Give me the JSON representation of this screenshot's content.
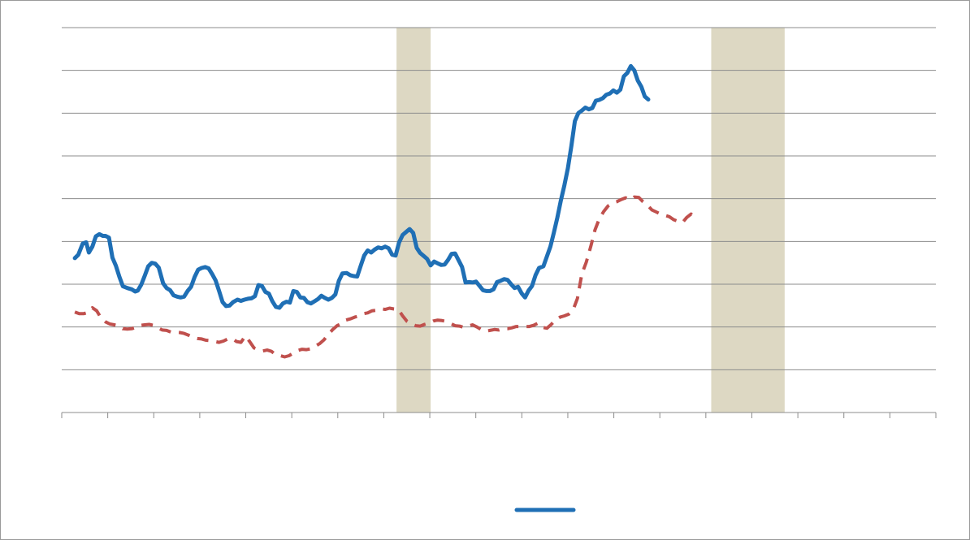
{
  "colors": {
    "primary_line": "#1f6fb5",
    "secondary_line": "#c0504d",
    "recession_band": "#ddd8c3",
    "grid": "#8c8c8c"
  },
  "chart_data": {
    "type": "line",
    "title": "",
    "xlabel": "",
    "ylabel": "",
    "xlim": [
      0,
      1000
    ],
    "ylim": [
      0,
      9
    ],
    "grid": true,
    "x_tick_count": 19,
    "legend_position": "bottom",
    "shaded_bands": [
      [
        383,
        422
      ],
      [
        743,
        827
      ]
    ],
    "series": [
      {
        "style": "solid",
        "points": [
          [
            15,
            3.61
          ],
          [
            19,
            3.69
          ],
          [
            24,
            3.95
          ],
          [
            28,
            3.98
          ],
          [
            31,
            3.74
          ],
          [
            35,
            3.88
          ],
          [
            39,
            4.12
          ],
          [
            43,
            4.17
          ],
          [
            47,
            4.13
          ],
          [
            50,
            4.13
          ],
          [
            54,
            4.09
          ],
          [
            58,
            3.62
          ],
          [
            62,
            3.43
          ],
          [
            66,
            3.17
          ],
          [
            70,
            2.95
          ],
          [
            75,
            2.91
          ],
          [
            80,
            2.88
          ],
          [
            84,
            2.83
          ],
          [
            87,
            2.85
          ],
          [
            91,
            2.99
          ],
          [
            95,
            3.2
          ],
          [
            99,
            3.42
          ],
          [
            103,
            3.5
          ],
          [
            107,
            3.48
          ],
          [
            111,
            3.39
          ],
          [
            116,
            3.02
          ],
          [
            120,
            2.91
          ],
          [
            124,
            2.86
          ],
          [
            128,
            2.74
          ],
          [
            132,
            2.71
          ],
          [
            136,
            2.69
          ],
          [
            140,
            2.71
          ],
          [
            144,
            2.84
          ],
          [
            148,
            2.94
          ],
          [
            152,
            3.17
          ],
          [
            156,
            3.34
          ],
          [
            160,
            3.38
          ],
          [
            164,
            3.4
          ],
          [
            168,
            3.37
          ],
          [
            172,
            3.24
          ],
          [
            176,
            3.09
          ],
          [
            180,
            2.84
          ],
          [
            184,
            2.58
          ],
          [
            188,
            2.49
          ],
          [
            192,
            2.5
          ],
          [
            196,
            2.58
          ],
          [
            201,
            2.64
          ],
          [
            205,
            2.61
          ],
          [
            209,
            2.64
          ],
          [
            213,
            2.66
          ],
          [
            217,
            2.67
          ],
          [
            221,
            2.72
          ],
          [
            225,
            2.98
          ],
          [
            229,
            2.96
          ],
          [
            233,
            2.82
          ],
          [
            237,
            2.78
          ],
          [
            241,
            2.6
          ],
          [
            245,
            2.47
          ],
          [
            249,
            2.45
          ],
          [
            253,
            2.55
          ],
          [
            257,
            2.59
          ],
          [
            261,
            2.57
          ],
          [
            265,
            2.84
          ],
          [
            269,
            2.82
          ],
          [
            273,
            2.69
          ],
          [
            277,
            2.68
          ],
          [
            281,
            2.58
          ],
          [
            285,
            2.55
          ],
          [
            289,
            2.6
          ],
          [
            293,
            2.65
          ],
          [
            297,
            2.73
          ],
          [
            301,
            2.68
          ],
          [
            305,
            2.64
          ],
          [
            309,
            2.68
          ],
          [
            313,
            2.76
          ],
          [
            317,
            3.08
          ],
          [
            321,
            3.25
          ],
          [
            326,
            3.26
          ],
          [
            330,
            3.21
          ],
          [
            334,
            3.19
          ],
          [
            338,
            3.18
          ],
          [
            342,
            3.43
          ],
          [
            346,
            3.67
          ],
          [
            350,
            3.79
          ],
          [
            354,
            3.74
          ],
          [
            358,
            3.81
          ],
          [
            362,
            3.86
          ],
          [
            366,
            3.84
          ],
          [
            370,
            3.88
          ],
          [
            374,
            3.84
          ],
          [
            378,
            3.69
          ],
          [
            382,
            3.67
          ],
          [
            386,
            3.98
          ],
          [
            390,
            4.15
          ],
          [
            394,
            4.22
          ],
          [
            398,
            4.29
          ],
          [
            402,
            4.2
          ],
          [
            406,
            3.85
          ],
          [
            410,
            3.73
          ],
          [
            414,
            3.66
          ],
          [
            418,
            3.59
          ],
          [
            422,
            3.44
          ],
          [
            426,
            3.53
          ],
          [
            430,
            3.49
          ],
          [
            434,
            3.45
          ],
          [
            438,
            3.46
          ],
          [
            442,
            3.57
          ],
          [
            446,
            3.71
          ],
          [
            450,
            3.72
          ],
          [
            454,
            3.56
          ],
          [
            458,
            3.4
          ],
          [
            462,
            3.04
          ],
          [
            466,
            3.05
          ],
          [
            470,
            3.04
          ],
          [
            474,
            3.06
          ],
          [
            478,
            2.96
          ],
          [
            482,
            2.86
          ],
          [
            486,
            2.84
          ],
          [
            490,
            2.84
          ],
          [
            494,
            2.88
          ],
          [
            498,
            3.05
          ],
          [
            502,
            3.08
          ],
          [
            506,
            3.12
          ],
          [
            510,
            3.1
          ],
          [
            514,
            3.0
          ],
          [
            518,
            2.91
          ],
          [
            522,
            2.94
          ],
          [
            526,
            2.79
          ],
          [
            530,
            2.69
          ],
          [
            534,
            2.85
          ],
          [
            538,
            2.96
          ],
          [
            542,
            3.21
          ],
          [
            546,
            3.38
          ],
          [
            551,
            3.42
          ],
          [
            555,
            3.65
          ],
          [
            559,
            3.88
          ],
          [
            563,
            4.21
          ],
          [
            567,
            4.56
          ],
          [
            571,
            4.96
          ],
          [
            575,
            5.31
          ],
          [
            579,
            5.71
          ],
          [
            583,
            6.23
          ],
          [
            587,
            6.81
          ],
          [
            591,
            7.0
          ],
          [
            595,
            7.06
          ],
          [
            599,
            7.13
          ],
          [
            603,
            7.09
          ],
          [
            607,
            7.12
          ],
          [
            611,
            7.29
          ],
          [
            615,
            7.31
          ],
          [
            619,
            7.35
          ],
          [
            623,
            7.43
          ],
          [
            627,
            7.46
          ],
          [
            631,
            7.53
          ],
          [
            635,
            7.48
          ],
          [
            639,
            7.55
          ],
          [
            643,
            7.86
          ],
          [
            647,
            7.94
          ],
          [
            651,
            8.1
          ],
          [
            655,
            8.0
          ],
          [
            659,
            7.76
          ],
          [
            663,
            7.62
          ],
          [
            667,
            7.39
          ],
          [
            671,
            7.32
          ]
        ]
      },
      {
        "style": "dashed",
        "points": [
          [
            15,
            2.35
          ],
          [
            20,
            2.31
          ],
          [
            25,
            2.31
          ],
          [
            30,
            2.34
          ],
          [
            35,
            2.45
          ],
          [
            40,
            2.38
          ],
          [
            45,
            2.21
          ],
          [
            50,
            2.12
          ],
          [
            55,
            2.07
          ],
          [
            60,
            2.05
          ],
          [
            65,
            2.03
          ],
          [
            70,
            1.96
          ],
          [
            75,
            1.95
          ],
          [
            80,
            1.96
          ],
          [
            85,
            1.99
          ],
          [
            90,
            2.04
          ],
          [
            95,
            2.05
          ],
          [
            100,
            2.06
          ],
          [
            105,
            2.04
          ],
          [
            110,
            1.98
          ],
          [
            115,
            1.93
          ],
          [
            120,
            1.92
          ],
          [
            125,
            1.88
          ],
          [
            130,
            1.88
          ],
          [
            135,
            1.87
          ],
          [
            140,
            1.85
          ],
          [
            145,
            1.81
          ],
          [
            150,
            1.76
          ],
          [
            155,
            1.73
          ],
          [
            160,
            1.72
          ],
          [
            165,
            1.69
          ],
          [
            170,
            1.68
          ],
          [
            175,
            1.66
          ],
          [
            180,
            1.64
          ],
          [
            185,
            1.67
          ],
          [
            190,
            1.72
          ],
          [
            195,
            1.73
          ],
          [
            200,
            1.66
          ],
          [
            205,
            1.64
          ],
          [
            210,
            1.79
          ],
          [
            215,
            1.66
          ],
          [
            220,
            1.51
          ],
          [
            225,
            1.46
          ],
          [
            230,
            1.44
          ],
          [
            235,
            1.46
          ],
          [
            240,
            1.43
          ],
          [
            245,
            1.35
          ],
          [
            250,
            1.33
          ],
          [
            255,
            1.3
          ],
          [
            260,
            1.33
          ],
          [
            265,
            1.39
          ],
          [
            270,
            1.45
          ],
          [
            275,
            1.48
          ],
          [
            280,
            1.47
          ],
          [
            285,
            1.49
          ],
          [
            290,
            1.55
          ],
          [
            295,
            1.61
          ],
          [
            300,
            1.7
          ],
          [
            305,
            1.83
          ],
          [
            310,
            1.94
          ],
          [
            315,
            2.03
          ],
          [
            320,
            2.08
          ],
          [
            325,
            2.16
          ],
          [
            330,
            2.19
          ],
          [
            335,
            2.23
          ],
          [
            340,
            2.26
          ],
          [
            345,
            2.31
          ],
          [
            350,
            2.33
          ],
          [
            355,
            2.38
          ],
          [
            360,
            2.39
          ],
          [
            365,
            2.43
          ],
          [
            370,
            2.41
          ],
          [
            375,
            2.44
          ],
          [
            380,
            2.42
          ],
          [
            385,
            2.41
          ],
          [
            390,
            2.26
          ],
          [
            395,
            2.13
          ],
          [
            400,
            2.07
          ],
          [
            405,
            2.03
          ],
          [
            410,
            2.02
          ],
          [
            415,
            2.06
          ],
          [
            420,
            2.09
          ],
          [
            425,
            2.14
          ],
          [
            430,
            2.16
          ],
          [
            435,
            2.15
          ],
          [
            440,
            2.13
          ],
          [
            445,
            2.08
          ],
          [
            450,
            2.03
          ],
          [
            455,
            2.02
          ],
          [
            460,
            1.99
          ],
          [
            465,
            2.02
          ],
          [
            470,
            2.05
          ],
          [
            475,
            2.0
          ],
          [
            480,
            1.94
          ],
          [
            485,
            1.9
          ],
          [
            490,
            1.92
          ],
          [
            495,
            1.94
          ],
          [
            500,
            1.93
          ],
          [
            505,
            1.96
          ],
          [
            510,
            1.96
          ],
          [
            515,
            1.98
          ],
          [
            520,
            2.01
          ],
          [
            525,
            2.01
          ],
          [
            530,
            2.01
          ],
          [
            535,
            2.01
          ],
          [
            540,
            2.04
          ],
          [
            545,
            2.09
          ],
          [
            550,
            1.99
          ],
          [
            555,
            1.97
          ],
          [
            560,
            2.06
          ],
          [
            565,
            2.17
          ],
          [
            570,
            2.23
          ],
          [
            575,
            2.26
          ],
          [
            580,
            2.3
          ],
          [
            585,
            2.4
          ],
          [
            590,
            2.67
          ],
          [
            595,
            3.24
          ],
          [
            600,
            3.51
          ],
          [
            605,
            3.87
          ],
          [
            610,
            4.27
          ],
          [
            615,
            4.53
          ],
          [
            620,
            4.7
          ],
          [
            625,
            4.83
          ],
          [
            630,
            4.9
          ],
          [
            635,
            4.93
          ],
          [
            640,
            4.98
          ],
          [
            645,
            5.02
          ],
          [
            650,
            4.97
          ],
          [
            655,
            5.04
          ],
          [
            660,
            5.03
          ],
          [
            665,
            4.93
          ],
          [
            670,
            4.85
          ],
          [
            675,
            4.74
          ],
          [
            680,
            4.69
          ],
          [
            685,
            4.64
          ],
          [
            690,
            4.61
          ],
          [
            695,
            4.58
          ],
          [
            700,
            4.51
          ],
          [
            705,
            4.47
          ],
          [
            710,
            4.44
          ],
          [
            715,
            4.56
          ],
          [
            720,
            4.64
          ],
          [
            725,
            4.52
          ]
        ]
      }
    ]
  }
}
